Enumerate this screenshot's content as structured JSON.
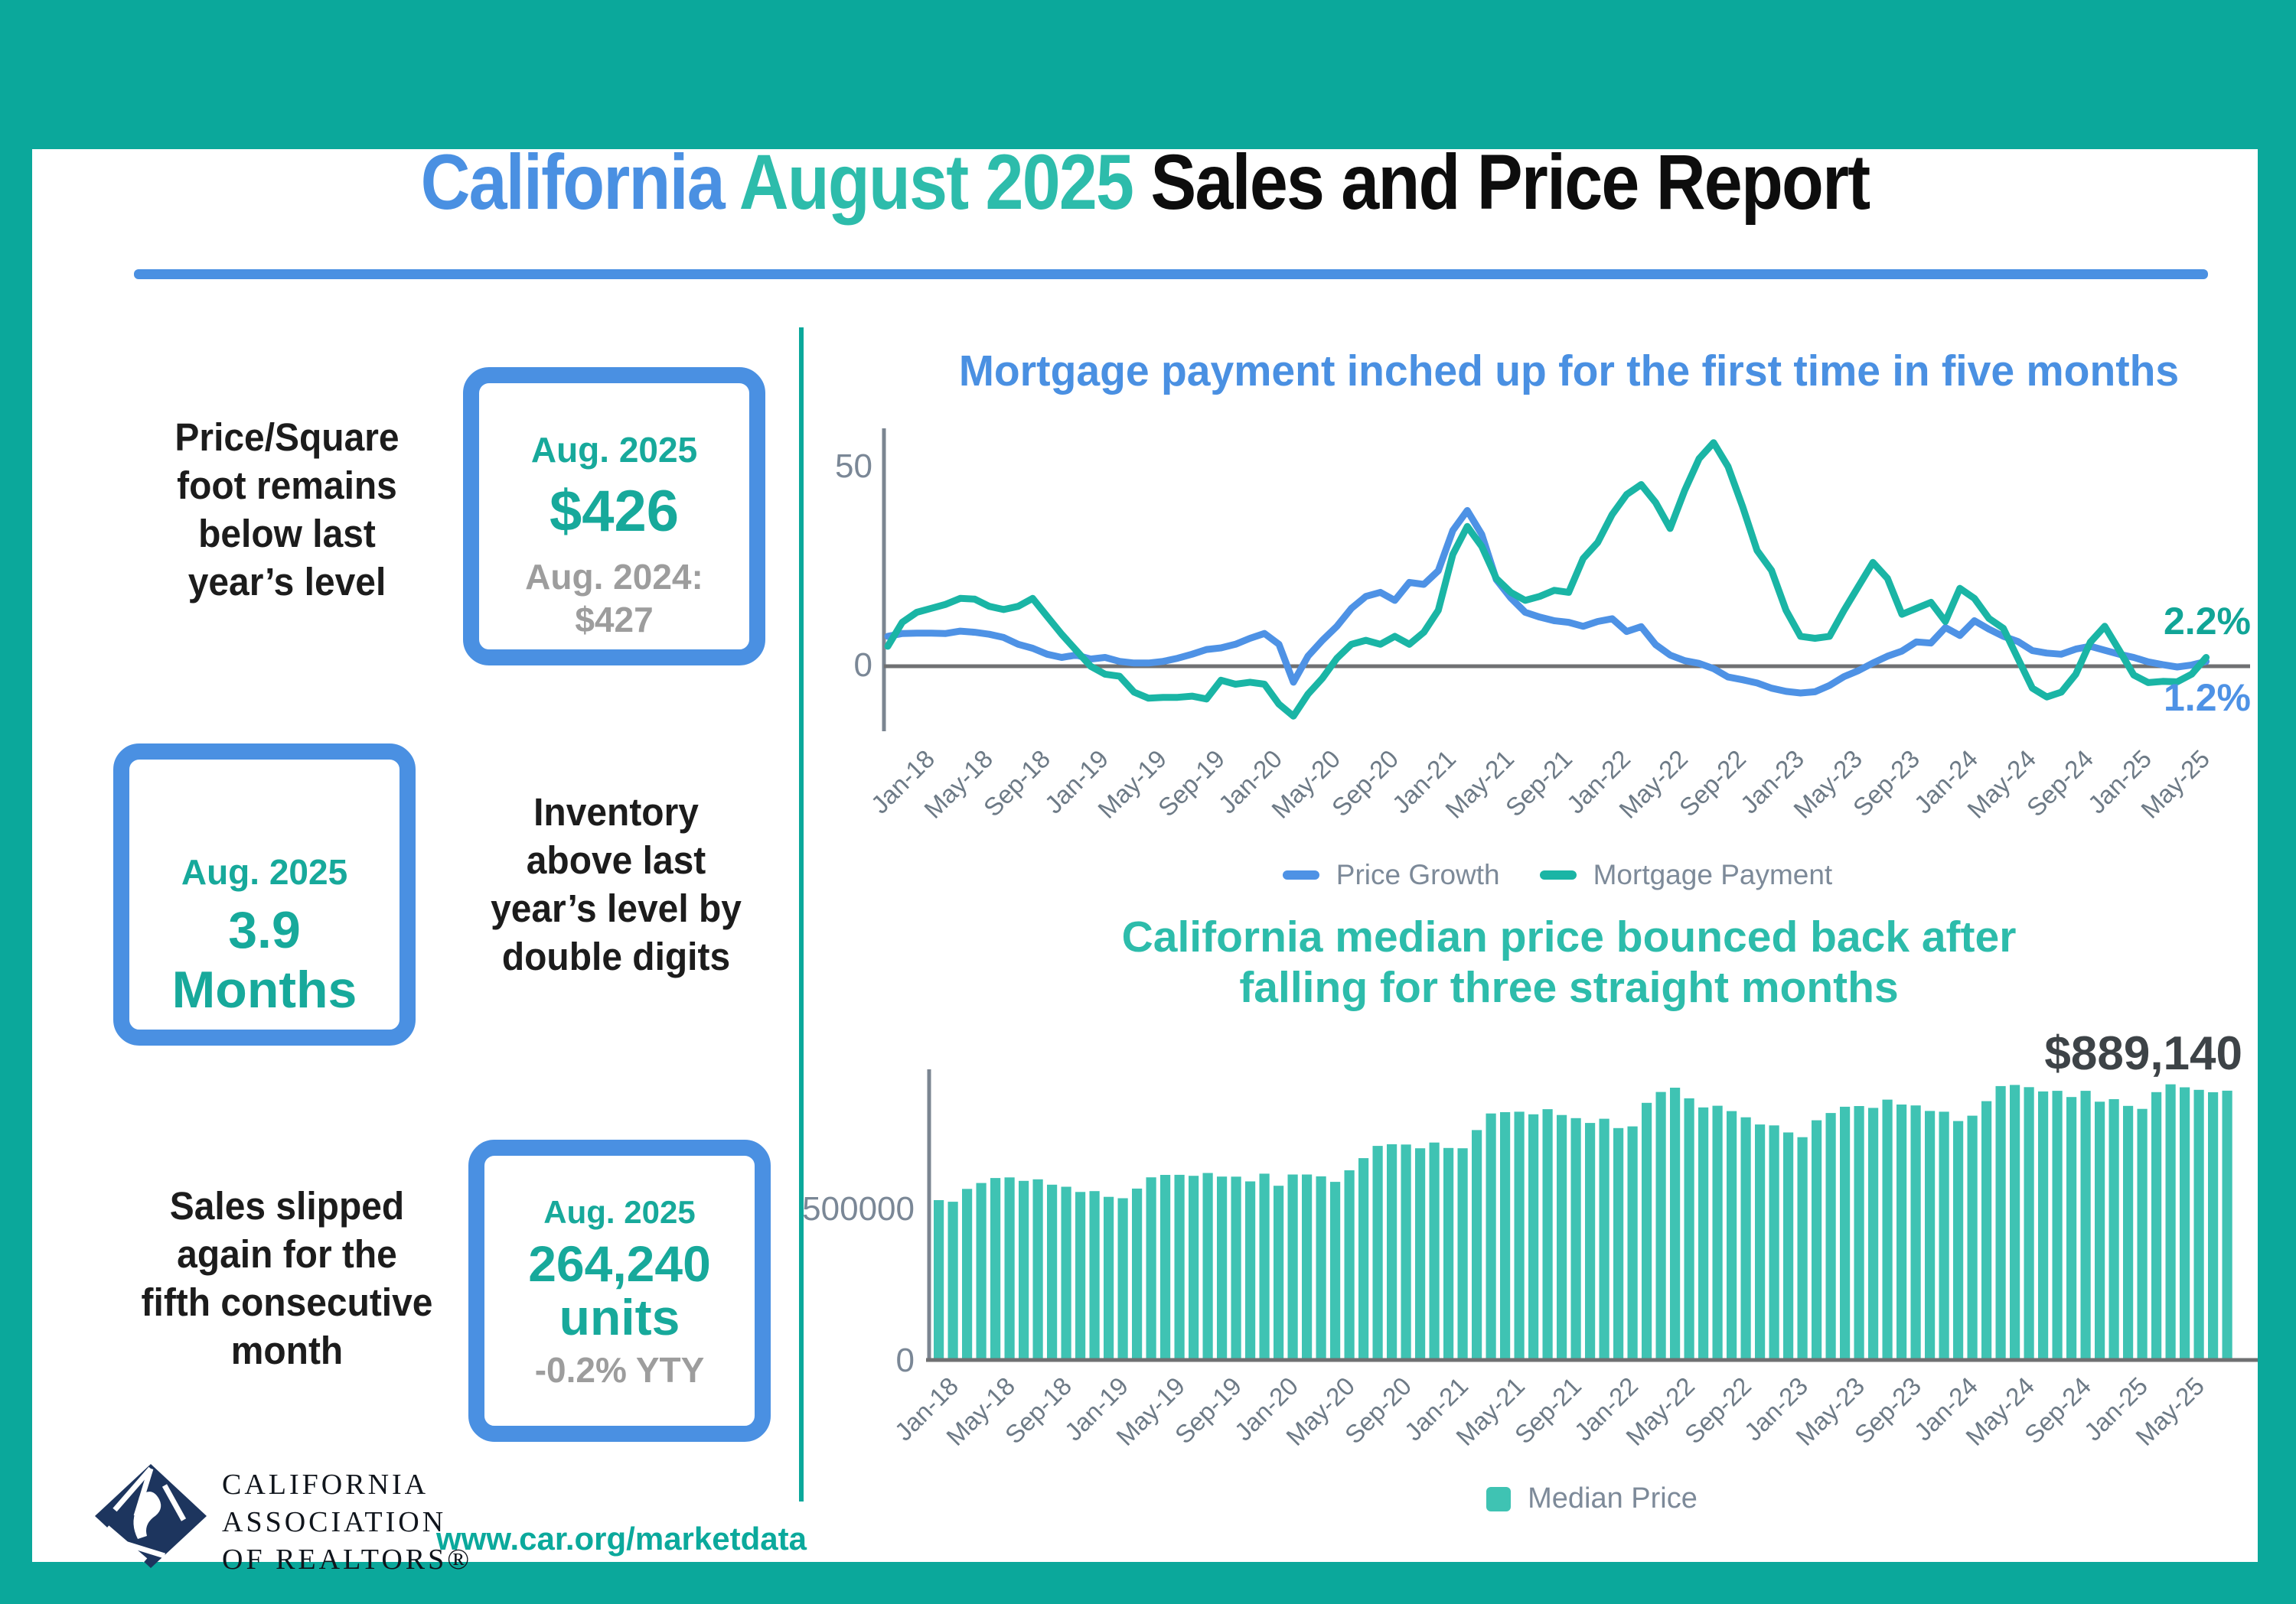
{
  "colors": {
    "frame_teal": "#0ba89b",
    "accent_blue": "#4a90e2",
    "accent_teal": "#2dbcab",
    "stat_teal": "#17a99b",
    "stat_gray": "#9d9d9d",
    "line_blue": "#4e92e5",
    "line_teal": "#1ab5a5",
    "bar_teal": "#3fc3b3",
    "axis_gray": "#6f7072",
    "tick_gray": "#6d7a86"
  },
  "title": {
    "part1": "California ",
    "part2": "August 2025",
    "part3": " Sales and Price Report"
  },
  "stats": [
    {
      "label": "Price/Square\nfoot remains\nbelow last\nyear’s level",
      "box": {
        "period": "Aug. 2025",
        "value": "$426",
        "compare_label": "Aug. 2024:",
        "compare_value": "$427"
      }
    },
    {
      "label": "Inventory\nabove last\nyear’s level by\ndouble digits",
      "box": {
        "period": "Aug. 2025",
        "value": "3.9 Months"
      }
    },
    {
      "label": "Sales slipped\nagain for the\nfifth consecutive\nmonth",
      "box": {
        "period": "Aug. 2025",
        "value": "264,240",
        "value2": "units",
        "sub": "-0.2% YTY"
      }
    }
  ],
  "footer": {
    "org_name": "CALIFORNIA\nASSOCIATION\nOF REALTORS®",
    "url": "www.car.org/marketdata"
  },
  "chart1": {
    "title": "Mortgage payment inched up for the first time in five months",
    "y_tick_top": "50",
    "y_tick_zero": "0",
    "end_label_mortgage": "2.2%",
    "end_label_price": "1.2%",
    "legend_price": "Price Growth",
    "legend_mortgage": "Mortgage Payment"
  },
  "chart2": {
    "title": "California median price bounced back after\nfalling for three straight months",
    "annotation": "$889,140",
    "y_tick_top": "500000",
    "y_tick_zero": "0",
    "legend_median": "Median Price"
  },
  "chart_data": [
    {
      "type": "line",
      "title": "Mortgage payment inched up for the first time in five months",
      "x_start": "Jan-18",
      "x_end": "Aug-25",
      "x_tick_labels": [
        "Jan-18",
        "May-18",
        "Sep-18",
        "Jan-19",
        "May-19",
        "Sep-19",
        "Jan-20",
        "May-20",
        "Sep-20",
        "Jan-21",
        "May-21",
        "Sep-21",
        "Jan-22",
        "May-22",
        "Sep-22",
        "Jan-23",
        "May-23",
        "Sep-23",
        "Jan-24",
        "May-24",
        "Sep-24",
        "Jan-25",
        "May-25"
      ],
      "y_ticks": [
        0,
        50
      ],
      "ylim": [
        -16,
        59
      ],
      "grid": false,
      "legend_position": "bottom",
      "series": [
        {
          "name": "Price Growth",
          "color": "#4e92e5",
          "values": [
            7.5,
            8.2,
            8.3,
            8.3,
            8.2,
            8.8,
            8.5,
            8.0,
            7.2,
            5.5,
            4.5,
            3.0,
            2.2,
            2.8,
            1.8,
            2.2,
            1.2,
            0.8,
            0.8,
            1.2,
            2.0,
            3.0,
            4.2,
            4.6,
            5.5,
            7.0,
            8.2,
            5.5,
            -4.0,
            2.5,
            6.5,
            10.0,
            14.5,
            17.5,
            18.5,
            16.5,
            21.0,
            20.5,
            23.9,
            34.0,
            39.0,
            33.0,
            21.7,
            17.1,
            13.5,
            12.3,
            11.4,
            11.0,
            10.0,
            11.2,
            11.9,
            8.7,
            9.9,
            5.4,
            2.8,
            1.4,
            0.7,
            -0.6,
            -2.7,
            -3.4,
            -4.2,
            -5.5,
            -6.3,
            -6.7,
            -6.4,
            -4.8,
            -2.6,
            -1.1,
            0.8,
            2.5,
            3.8,
            6.1,
            5.8,
            9.7,
            7.7,
            11.4,
            9.3,
            7.5,
            6.2,
            3.9,
            3.3,
            3.0,
            4.3,
            5.0,
            4.0,
            3.0,
            2.2,
            1.1,
            0.4,
            -0.2,
            0.3,
            1.2
          ]
        },
        {
          "name": "Mortgage Payment",
          "color": "#1ab5a5",
          "values": [
            5.0,
            11.0,
            13.5,
            14.5,
            15.5,
            17.0,
            16.8,
            15.0,
            14.2,
            15.0,
            17.0,
            12.5,
            8.0,
            4.0,
            0.0,
            -2.0,
            -2.5,
            -6.5,
            -8.0,
            -7.8,
            -7.8,
            -7.5,
            -8.2,
            -3.5,
            -4.5,
            -4.0,
            -4.5,
            -9.5,
            -12.5,
            -7.0,
            -3.0,
            2.0,
            5.5,
            6.5,
            5.5,
            7.5,
            5.5,
            8.5,
            14.0,
            28.0,
            35.0,
            30.0,
            22.0,
            18.5,
            16.5,
            17.5,
            19.0,
            18.5,
            27.0,
            31.0,
            38.0,
            43.0,
            45.5,
            41.0,
            34.5,
            44.0,
            52.0,
            56.0,
            50.0,
            40.0,
            29.0,
            24.0,
            14.0,
            7.5,
            7.0,
            7.5,
            14.0,
            20.0,
            26.0,
            22.0,
            13.0,
            14.5,
            16.0,
            11.2,
            19.5,
            17.0,
            12.0,
            9.5,
            2.0,
            -5.5,
            -7.7,
            -6.5,
            -2.0,
            6.0,
            10.0,
            4.0,
            -2.2,
            -4.1,
            -3.8,
            -3.9,
            -2.0,
            2.2
          ]
        }
      ],
      "end_value_labels": {
        "Mortgage Payment": "2.2%",
        "Price Growth": "1.2%"
      }
    },
    {
      "type": "bar",
      "title": "California median price bounced back after falling for three straight months",
      "x_start": "Jan-18",
      "x_end": "Aug-25",
      "x_tick_labels": [
        "Jan-18",
        "May-18",
        "Sep-18",
        "Jan-19",
        "May-19",
        "Sep-19",
        "Jan-20",
        "May-20",
        "Sep-20",
        "Jan-21",
        "May-21",
        "Sep-21",
        "Jan-22",
        "May-22",
        "Sep-22",
        "Jan-23",
        "May-23",
        "Sep-23",
        "Jan-24",
        "May-24",
        "Sep-24",
        "Jan-25",
        "May-25"
      ],
      "y_ticks": [
        0,
        500000
      ],
      "ylim": [
        0,
        960000
      ],
      "grid": false,
      "legend_position": "bottom",
      "annotation": {
        "text": "$889,140",
        "target": "Aug-25"
      },
      "series": [
        {
          "name": "Median Price",
          "color": "#3fc3b3",
          "values": [
            527800,
            522440,
            564830,
            584460,
            600860,
            602760,
            591460,
            596410,
            578850,
            572000,
            554760,
            557600,
            538690,
            534140,
            565880,
            602920,
            611190,
            611420,
            607990,
            617410,
            605680,
            605280,
            589770,
            615090,
            575160,
            612440,
            612280,
            606410,
            588070,
            626170,
            666320,
            706900,
            712430,
            711300,
            699000,
            717930,
            699890,
            699000,
            758990,
            813980,
            818260,
            819630,
            811170,
            827940,
            808890,
            798440,
            782480,
            796570,
            765580,
            771270,
            849080,
            884890,
            898980,
            863790,
            833910,
            839460,
            821680,
            801190,
            777500,
            774580,
            751330,
            735480,
            791490,
            815340,
            836110,
            838260,
            832340,
            859500,
            843340,
            840360,
            822200,
            819740,
            788940,
            806490,
            854490,
            904210,
            908040,
            900720,
            886560,
            888740,
            868150,
            888740,
            852880,
            861020,
            838850,
            829060,
            884350,
            910160,
            900170,
            892010,
            884050,
            889140
          ]
        }
      ]
    }
  ]
}
